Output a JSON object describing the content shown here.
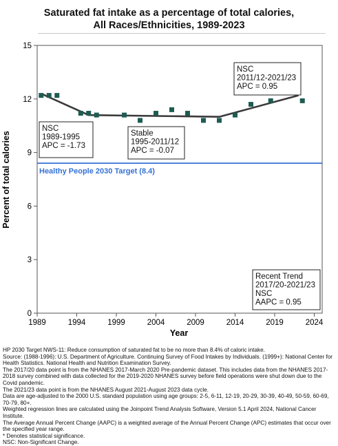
{
  "title": {
    "line1": "Saturated fat intake as a percentage of total calories,",
    "line2": "All Races/Ethnicities,  1989-2023"
  },
  "chart_data": {
    "type": "scatter",
    "xlabel": "Year",
    "ylabel": "Percent of total calories",
    "xlim": [
      1989,
      2025
    ],
    "ylim": [
      0,
      15
    ],
    "xticks": [
      1989,
      1994,
      1999,
      2004,
      2009,
      2014,
      2019,
      2024
    ],
    "yticks": [
      0,
      3,
      6,
      9,
      12,
      15
    ],
    "grid": false,
    "marker_color": "#1e5c52",
    "trend_color": "#3a3a3a",
    "target_color": "#3370d6",
    "points": [
      {
        "x": 1989.5,
        "y": 12.2
      },
      {
        "x": 1990.5,
        "y": 12.2
      },
      {
        "x": 1991.5,
        "y": 12.2
      },
      {
        "x": 1994.5,
        "y": 11.2
      },
      {
        "x": 1995.5,
        "y": 11.2
      },
      {
        "x": 1996.5,
        "y": 11.1
      },
      {
        "x": 2000.0,
        "y": 11.1
      },
      {
        "x": 2002.0,
        "y": 10.8
      },
      {
        "x": 2004.0,
        "y": 11.2
      },
      {
        "x": 2006.0,
        "y": 11.4
      },
      {
        "x": 2008.0,
        "y": 11.2
      },
      {
        "x": 2010.0,
        "y": 10.8
      },
      {
        "x": 2012.0,
        "y": 10.8
      },
      {
        "x": 2014.0,
        "y": 11.1
      },
      {
        "x": 2016.0,
        "y": 11.7
      },
      {
        "x": 2018.5,
        "y": 11.9
      },
      {
        "x": 2022.5,
        "y": 11.9
      }
    ],
    "trend_line": [
      {
        "x": 1989.5,
        "y": 12.3
      },
      {
        "x": 1995.5,
        "y": 11.1
      },
      {
        "x": 2012.0,
        "y": 11.0
      },
      {
        "x": 2022.0,
        "y": 12.2
      }
    ],
    "target": {
      "y": 8.4,
      "label": "Healthy People 2030 Target (8.4)"
    },
    "annotations": [
      {
        "id": "seg1",
        "lines": [
          "NSC",
          "1989-1995",
          "APC = -1.73"
        ]
      },
      {
        "id": "seg2",
        "lines": [
          "Stable",
          "1995-2011/12",
          "APC = -0.07"
        ]
      },
      {
        "id": "seg3",
        "lines": [
          "NSC",
          "2011/12-2021/23",
          "APC =  0.95"
        ]
      },
      {
        "id": "recent",
        "lines": [
          "Recent Trend",
          "2017/20-2021/23",
          "NSC",
          "AAPC =  0.95"
        ]
      }
    ]
  },
  "notes": [
    "HP 2030 Target NWS-11: Reduce consumption of saturated fat to be no more than 8.4% of caloric intake.",
    "Source: (1988-1996): U.S. Department of Agriculture. Continuing Survey of Food Intakes by Individuals. (1999+): National Center for Health Statistics. National Health and Nutrition Examination Survey.",
    "The 2017/20 data point is from the NHANES 2017-March 2020 Pre-pandemic dataset. This includes data from the NHANES 2017-2018 survey combined with data collected for the 2019-2020 NHANES survey before field operations were shut down due to the Covid pandemic.",
    "The 2021/23 data point is from the NHANES August 2021-August 2023 data cycle.",
    "Data are age-adjusted to the 2000 U.S. standard population using age groups: 2-5, 6-11, 12-19, 20-29, 30-39, 40-49, 50-59, 60-69, 70-79, 80+.",
    "Weighted regression lines are calculated using the Joinpoint Trend Analysis Software, Version 5.1 April 2024, National Cancer Institute.",
    "The Average Annual Percent Change (AAPC) is a weighted average of the Annual Percent Change (APC) estimates that occur over the specified year range.",
    "* Denotes statistical significance.",
    "NSC: Non-Significant Change."
  ]
}
